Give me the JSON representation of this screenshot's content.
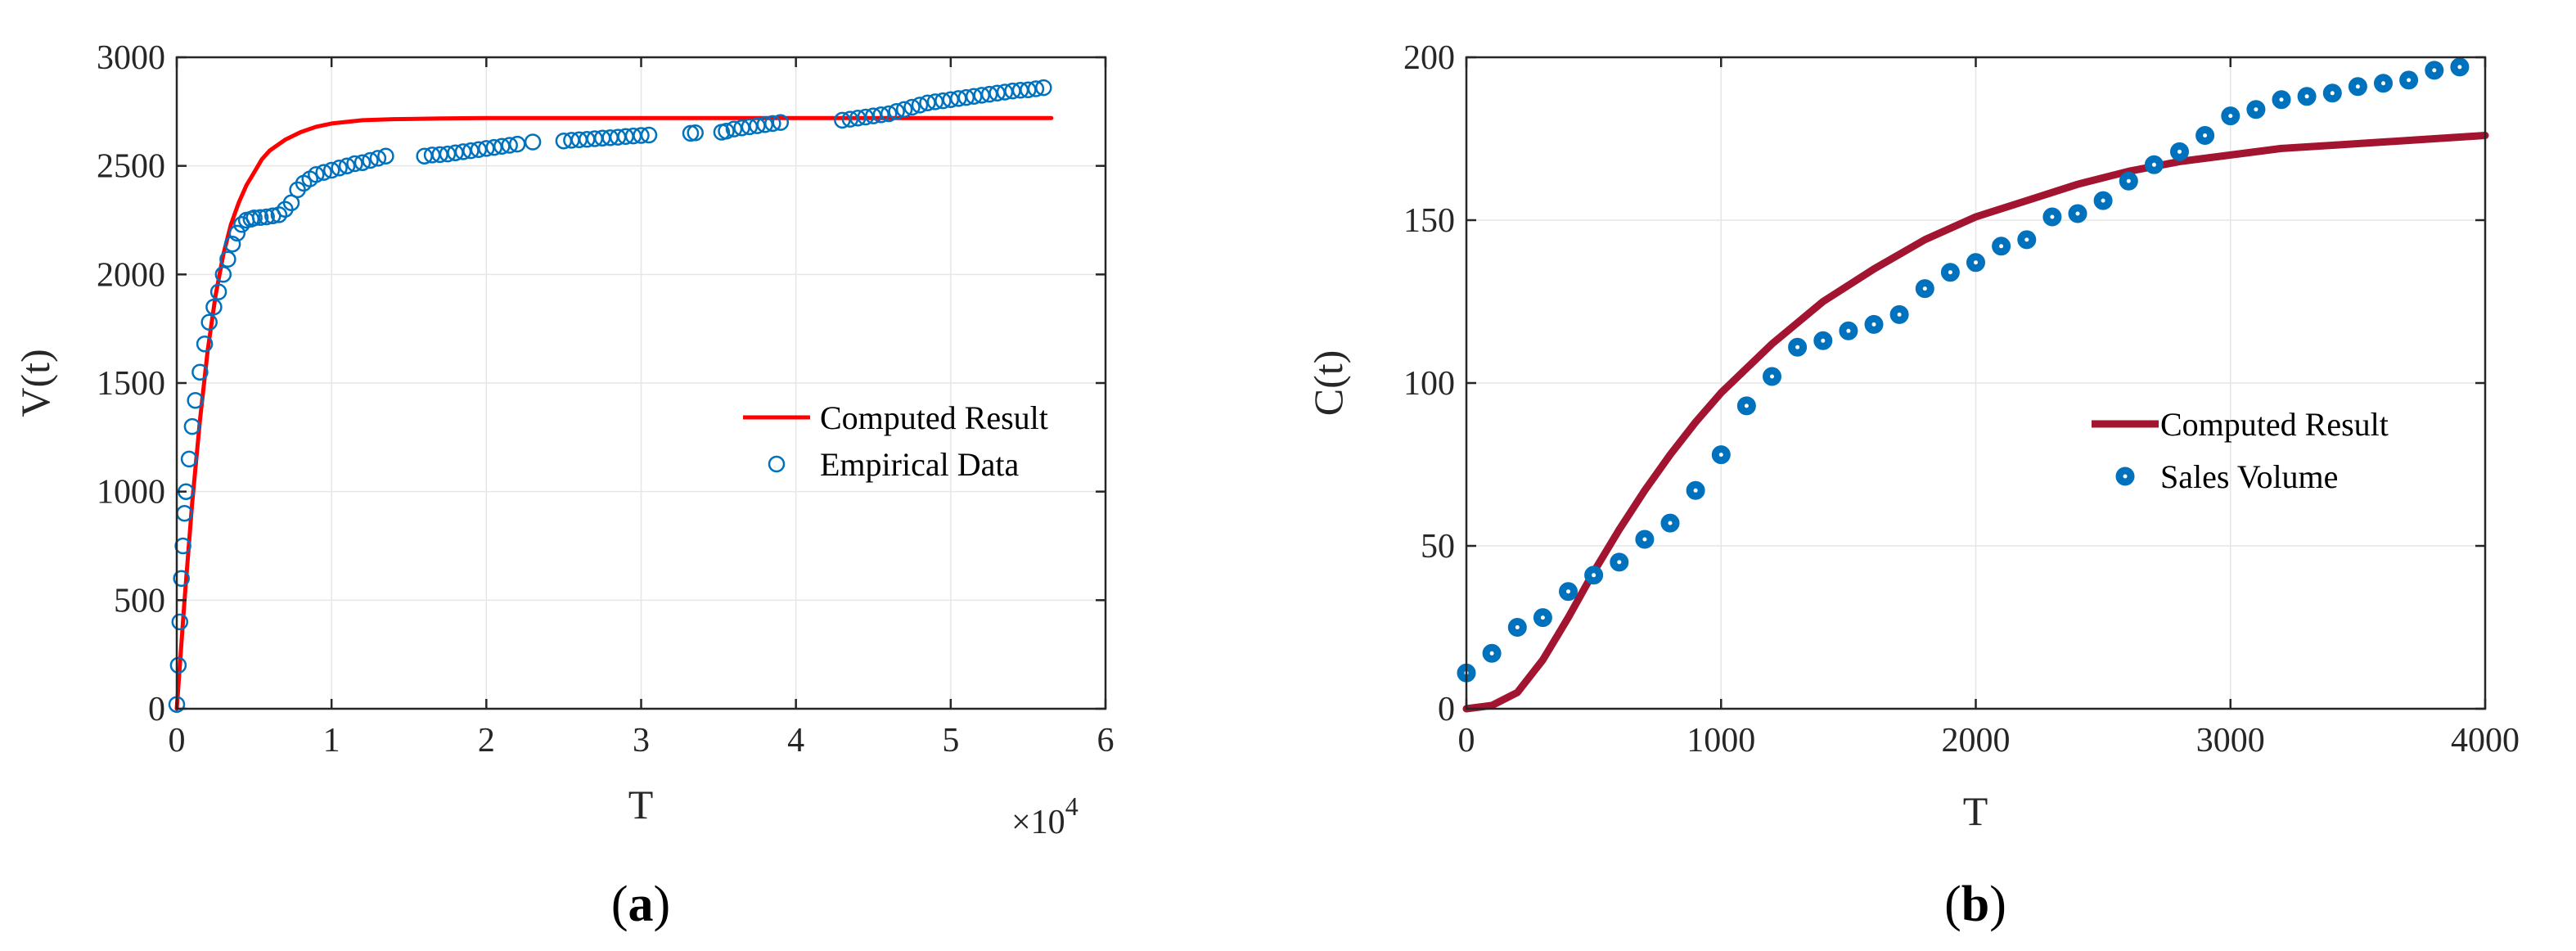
{
  "chart_data": [
    {
      "type": "scatter",
      "panel": "(a)",
      "caption_open": "(",
      "caption_letter": "a",
      "caption_close": ")",
      "xlabel": "T",
      "ylabel": "V(t)",
      "xlim": [
        0,
        60000
      ],
      "ylim": [
        0,
        3000
      ],
      "x_ticks": [
        0,
        10000,
        20000,
        30000,
        40000,
        50000,
        60000
      ],
      "x_tick_labels": [
        "0",
        "1",
        "2",
        "3",
        "4",
        "5",
        "6"
      ],
      "y_ticks": [
        0,
        500,
        1000,
        1500,
        2000,
        2500,
        3000
      ],
      "y_tick_labels": [
        "0",
        "500",
        "1000",
        "1500",
        "2000",
        "2500",
        "3000"
      ],
      "x_multiplier": "×10",
      "x_multiplier_exp": "4",
      "grid": true,
      "legend_position": "center-right",
      "colors": {
        "line": "#ff0000",
        "markers": "#0072bd"
      },
      "series": [
        {
          "name": "Computed Result",
          "kind": "line",
          "x": [
            0,
            500,
            1000,
            1500,
            2000,
            2500,
            3000,
            3500,
            4000,
            4500,
            5000,
            5500,
            6000,
            7000,
            8000,
            9000,
            10000,
            12000,
            14000,
            17000,
            20000,
            25000,
            30000,
            35000,
            40000,
            45000,
            50000,
            56500
          ],
          "y": [
            0,
            500,
            950,
            1330,
            1650,
            1900,
            2090,
            2230,
            2330,
            2410,
            2470,
            2530,
            2570,
            2620,
            2655,
            2680,
            2695,
            2710,
            2715,
            2718,
            2720,
            2720,
            2720,
            2720,
            2720,
            2720,
            2720,
            2720
          ]
        },
        {
          "name": "Empirical Data",
          "kind": "open-circle",
          "x": [
            0,
            100,
            200,
            300,
            400,
            500,
            600,
            800,
            1000,
            1200,
            1500,
            1800,
            2100,
            2400,
            2700,
            3000,
            3300,
            3600,
            3900,
            4200,
            4500,
            4800,
            5000,
            5400,
            5800,
            6200,
            6600,
            7000,
            7400,
            7800,
            8200,
            8600,
            9000,
            9500,
            10000,
            10500,
            11000,
            11500,
            12000,
            12500,
            13000,
            13500,
            16000,
            16500,
            17000,
            17500,
            18000,
            18500,
            19000,
            19500,
            20000,
            20500,
            21000,
            21500,
            22000,
            23000,
            25000,
            25500,
            26000,
            26500,
            27000,
            27500,
            28000,
            28500,
            29000,
            29500,
            30000,
            30500,
            33200,
            33500,
            35200,
            35500,
            36000,
            36500,
            37000,
            37500,
            38000,
            38500,
            39000,
            43000,
            43500,
            44000,
            44500,
            45000,
            45500,
            46000,
            46500,
            47000,
            47500,
            48000,
            48500,
            49000,
            49500,
            50000,
            50500,
            51000,
            51500,
            52000,
            52500,
            53000,
            53500,
            54000,
            54500,
            55000,
            55500,
            56000
          ],
          "y": [
            20,
            200,
            400,
            600,
            750,
            900,
            1000,
            1150,
            1300,
            1420,
            1550,
            1680,
            1780,
            1850,
            1920,
            2000,
            2070,
            2140,
            2190,
            2230,
            2250,
            2255,
            2260,
            2262,
            2265,
            2270,
            2275,
            2300,
            2330,
            2390,
            2420,
            2440,
            2460,
            2470,
            2480,
            2490,
            2500,
            2510,
            2515,
            2525,
            2535,
            2545,
            2545,
            2550,
            2552,
            2555,
            2560,
            2565,
            2570,
            2575,
            2580,
            2585,
            2590,
            2595,
            2600,
            2610,
            2615,
            2618,
            2620,
            2622,
            2625,
            2628,
            2630,
            2632,
            2635,
            2638,
            2640,
            2642,
            2650,
            2652,
            2655,
            2660,
            2670,
            2675,
            2680,
            2685,
            2690,
            2695,
            2700,
            2710,
            2715,
            2720,
            2725,
            2730,
            2735,
            2740,
            2750,
            2760,
            2770,
            2780,
            2790,
            2795,
            2800,
            2805,
            2810,
            2815,
            2820,
            2825,
            2830,
            2835,
            2840,
            2845,
            2848,
            2850,
            2855,
            2860
          ]
        }
      ]
    },
    {
      "type": "scatter",
      "panel": "(b)",
      "caption_open": "(",
      "caption_letter": "b",
      "caption_close": ")",
      "xlabel": "T",
      "ylabel": "C(t)",
      "xlim": [
        0,
        4000
      ],
      "ylim": [
        0,
        200
      ],
      "x_ticks": [
        0,
        1000,
        2000,
        3000,
        4000
      ],
      "x_tick_labels": [
        "0",
        "1000",
        "2000",
        "3000",
        "4000"
      ],
      "y_ticks": [
        0,
        50,
        100,
        150,
        200
      ],
      "y_tick_labels": [
        "0",
        "50",
        "100",
        "150",
        "200"
      ],
      "grid": true,
      "legend_position": "center-right",
      "colors": {
        "line": "#a2142f",
        "markers": "#0072bd"
      },
      "series": [
        {
          "name": "Computed Result",
          "kind": "line",
          "x": [
            0,
            100,
            200,
            300,
            400,
            500,
            600,
            700,
            800,
            900,
            1000,
            1200,
            1400,
            1600,
            1800,
            2000,
            2200,
            2400,
            2600,
            2800,
            3000,
            3200,
            3400,
            3600,
            3800,
            4000
          ],
          "y": [
            0,
            1,
            5,
            15,
            28,
            42,
            55,
            67,
            78,
            88,
            97,
            112,
            125,
            135,
            144,
            151,
            156,
            161,
            165,
            168,
            170,
            172,
            173,
            174,
            175,
            176
          ]
        },
        {
          "name": "Sales Volume",
          "kind": "filled-circle",
          "x": [
            0,
            100,
            200,
            300,
            400,
            500,
            600,
            700,
            800,
            900,
            1000,
            1100,
            1200,
            1300,
            1400,
            1500,
            1600,
            1700,
            1800,
            1900,
            2000,
            2100,
            2200,
            2300,
            2400,
            2500,
            2600,
            2700,
            2800,
            2900,
            3000,
            3100,
            3200,
            3300,
            3400,
            3500,
            3600,
            3700,
            3800,
            3900
          ],
          "y": [
            11,
            17,
            25,
            28,
            36,
            41,
            45,
            52,
            57,
            67,
            78,
            93,
            102,
            111,
            113,
            116,
            118,
            121,
            129,
            134,
            137,
            142,
            144,
            151,
            152,
            156,
            162,
            167,
            171,
            176,
            182,
            184,
            187,
            188,
            189,
            191,
            192,
            193,
            196,
            197
          ]
        }
      ]
    }
  ]
}
